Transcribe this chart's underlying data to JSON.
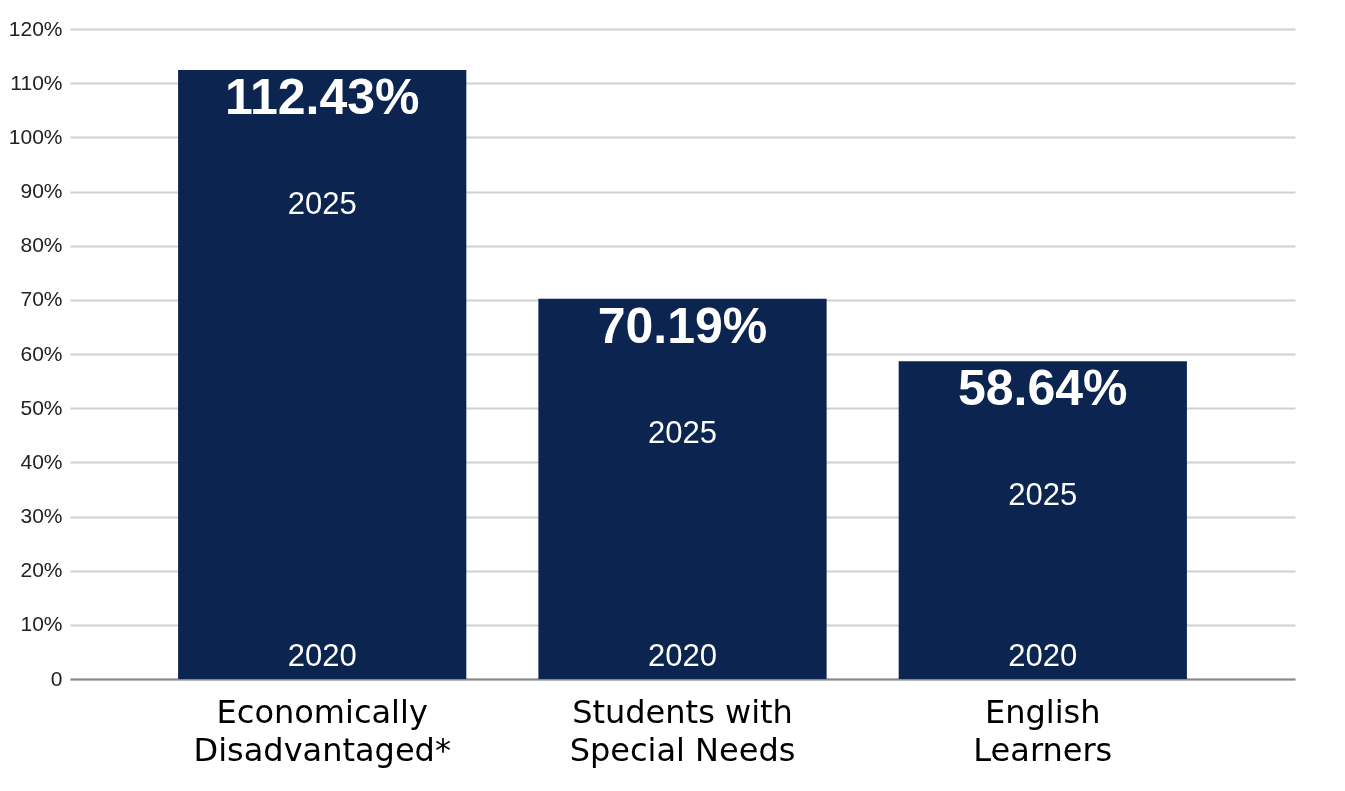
{
  "chart_data": {
    "type": "bar",
    "categories": [
      "Economically Disadvantaged*",
      "Students with Special Needs",
      "English Learners"
    ],
    "values": [
      112.43,
      70.19,
      58.64
    ],
    "value_labels": [
      "112.43%",
      "70.19%",
      "58.64%"
    ],
    "color": "#0c2450",
    "ylim": [
      0,
      120
    ],
    "yticks": [
      0,
      {
        "value": 10,
        "label": "10%"
      },
      {
        "value": 20,
        "label": "20%"
      },
      {
        "value": 30,
        "label": "30%"
      },
      {
        "value": 40,
        "label": "40%"
      },
      {
        "value": 50,
        "label": "50%"
      },
      {
        "value": 60,
        "label": "60%"
      },
      {
        "value": 70,
        "label": "70%"
      },
      {
        "value": 80,
        "label": "80%"
      },
      {
        "value": 90,
        "label": "90%"
      },
      {
        "value": 100,
        "label": "100%"
      },
      {
        "value": 110,
        "label": "110%"
      },
      {
        "value": 120,
        "label": "120%"
      }
    ],
    "grid": "y",
    "annotations": [
      "2025",
      "2020",
      "2025",
      "2020",
      "2025",
      "2020"
    ]
  }
}
